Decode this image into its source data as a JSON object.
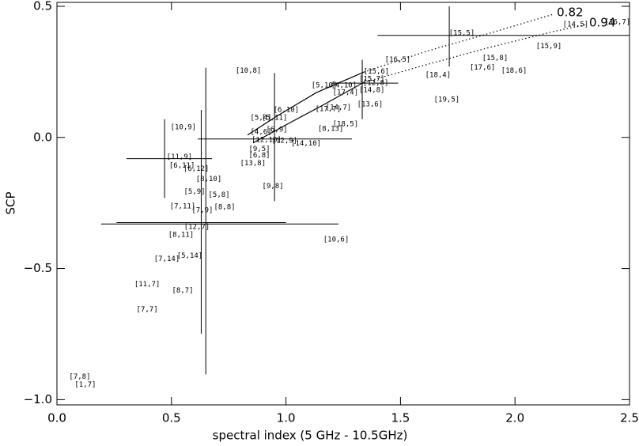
{
  "chart_data": {
    "type": "scatter",
    "xlabel": "spectral index (5 GHz - 10.5GHz)",
    "ylabel": "SCP",
    "xlim": [
      0,
      2.5
    ],
    "ylim": [
      -1.02,
      0.515
    ],
    "xticks": [
      {
        "value": 0,
        "label": "0.0"
      },
      0.5,
      {
        "value": 1,
        "label": "1.0"
      },
      1.5,
      {
        "value": 2,
        "label": "2.0"
      },
      2.5
    ],
    "yticks": [
      {
        "value": 0.5,
        "label": "0.5"
      },
      {
        "value": 0,
        "label": "0.0"
      },
      {
        "value": -0.5,
        "label": "−0.5"
      },
      {
        "value": -1,
        "label": "−1.0"
      }
    ],
    "color": "#000000",
    "point_labels": [
      "[15,5]",
      "[14,5]",
      "[16,7]",
      "[15,9]",
      "[16,5]",
      "[15,8]",
      "[17,6]",
      "[18,6]",
      "[18,4]",
      "[19,5]",
      "[10,8]",
      "[15,6]",
      "[15,7]",
      "[12,8]",
      "[5,10]",
      "[4,10]",
      "[17,4]",
      "[14,8]",
      "[13,6]",
      "[6,10]",
      "[17,7]",
      "[14,7]",
      "[5,4]",
      "[5,11]",
      "[18,5]",
      "[10,9]",
      "[8,13]",
      "[4,6]",
      "[6,9]",
      "[12,10]",
      "[14,10]",
      "[12,9]",
      "[9,5]",
      "[6,8]",
      "[11,9]",
      "[13,8]",
      "[6,11]",
      "[6,12]",
      "[8,10]",
      "[9,8]",
      "[5,9]",
      "[5,8]",
      "[7,11]",
      "[8,8]",
      "[7,9]",
      "[12,7]",
      "[8,11]",
      "[10,6]",
      "[7,14]",
      "[5,14]",
      "[11,7]",
      "[8,7]",
      "[7,7]",
      "[7,8]",
      "[1,7]"
    ],
    "x": [
      1.768,
      2.265,
      2.448,
      2.148,
      1.488,
      1.913,
      1.858,
      1.996,
      1.664,
      1.702,
      0.836,
      1.395,
      1.375,
      1.392,
      1.167,
      1.253,
      1.26,
      1.375,
      1.367,
      1.001,
      1.184,
      1.229,
      0.891,
      0.95,
      1.26,
      0.552,
      1.195,
      0.891,
      0.96,
      0.915,
      1.088,
      0.994,
      0.884,
      0.884,
      0.535,
      0.856,
      0.546,
      0.608,
      0.663,
      0.943,
      0.601,
      0.708,
      0.549,
      0.732,
      0.635,
      0.611,
      0.542,
      1.219,
      0.48,
      0.58,
      0.394,
      0.549,
      0.394,
      0.1,
      0.124
    ],
    "values": [
      0.398,
      0.431,
      0.44,
      0.347,
      0.296,
      0.302,
      0.266,
      0.254,
      0.237,
      0.144,
      0.254,
      0.251,
      0.222,
      0.207,
      0.198,
      0.198,
      0.171,
      0.18,
      0.126,
      0.105,
      0.108,
      0.114,
      0.075,
      0.075,
      0.051,
      0.039,
      0.033,
      0.021,
      0.03,
      -0.009,
      -0.024,
      -0.012,
      -0.045,
      -0.069,
      -0.075,
      -0.099,
      -0.108,
      -0.12,
      -0.159,
      -0.186,
      -0.207,
      -0.219,
      -0.263,
      -0.266,
      -0.278,
      -0.341,
      -0.371,
      -0.389,
      -0.464,
      -0.452,
      -0.56,
      -0.584,
      -0.656,
      -0.913,
      -0.943
    ],
    "error_bars": [
      {
        "x": 1.713,
        "y": 0.389,
        "xrange": [
          1.4,
          2.5
        ],
        "yrange": [
          0.27,
          0.5
        ]
      },
      {
        "x": 1.333,
        "y": 0.207,
        "xrange": [
          1.2,
          1.49
        ],
        "yrange": [
          0.07,
          0.296
        ]
      },
      {
        "x": 0.95,
        "y": -0.006,
        "xrange": [
          0.615,
          1.288
        ],
        "yrange": [
          -0.243,
          0.246
        ]
      },
      {
        "x": 0.47,
        "y": -0.081,
        "xrange": [
          0.304,
          0.677
        ],
        "yrange": [
          -0.231,
          0.069
        ]
      },
      {
        "x": 0.63,
        "y": -0.33,
        "xrange": [
          0.193,
          1.229
        ],
        "yrange": [
          -0.749,
          0.105
        ]
      },
      {
        "x": 0.65,
        "y": -0.325,
        "xrange": [
          0.26,
          1.0
        ],
        "yrange": [
          -0.904,
          0.266
        ]
      }
    ],
    "curves": [
      {
        "name": "0.82",
        "x_solid": [
          0.832,
          0.96,
          1.133,
          1.34
        ],
        "y_solid": [
          0.009,
          0.081,
          0.171,
          0.249
        ],
        "x_dotted": [
          1.34,
          1.616,
          1.892,
          2.169
        ],
        "y_dotted": [
          0.249,
          0.329,
          0.398,
          0.47
        ]
      },
      {
        "name": "0.94",
        "x_solid": [
          0.856,
          0.994,
          1.167,
          1.34
        ],
        "y_solid": [
          -0.021,
          0.045,
          0.126,
          0.21
        ],
        "x_dotted": [
          1.34,
          1.616,
          1.892,
          2.169,
          2.31
        ],
        "y_dotted": [
          0.21,
          0.278,
          0.344,
          0.404,
          0.43
        ]
      }
    ]
  }
}
